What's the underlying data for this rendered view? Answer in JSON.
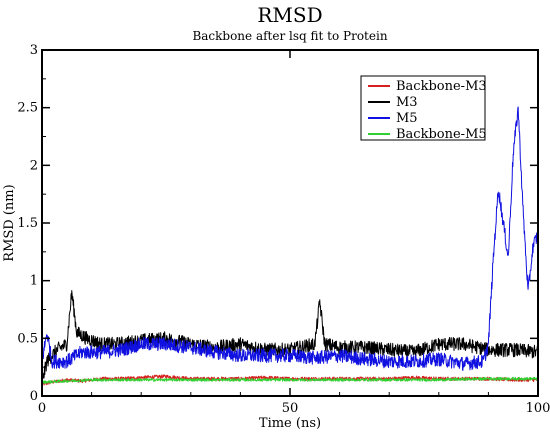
{
  "chart_data": {
    "type": "line",
    "title": "RMSD",
    "subtitle": "Backbone after lsq fit to Protein",
    "xlabel": "Time (ns)",
    "ylabel": "RMSD (nm)",
    "xlim": [
      0,
      100
    ],
    "ylim": [
      0,
      3
    ],
    "x_ticks": [
      0,
      50,
      100
    ],
    "y_ticks": [
      0,
      0.5,
      1,
      1.5,
      2,
      2.5,
      3
    ],
    "x_tick_labels": [
      "0",
      "50",
      "100"
    ],
    "y_tick_labels": [
      "0",
      "0.5",
      "1",
      "1.5",
      "2",
      "2.5",
      "3"
    ],
    "grid": false,
    "legend_position": "top-right",
    "series": [
      {
        "name": "Backbone-M3",
        "color": "#d62020",
        "points": [
          [
            0,
            0.1
          ],
          [
            2,
            0.12
          ],
          [
            5,
            0.14
          ],
          [
            8,
            0.13
          ],
          [
            12,
            0.15
          ],
          [
            16,
            0.15
          ],
          [
            20,
            0.16
          ],
          [
            25,
            0.17
          ],
          [
            30,
            0.15
          ],
          [
            35,
            0.15
          ],
          [
            40,
            0.15
          ],
          [
            45,
            0.16
          ],
          [
            50,
            0.15
          ],
          [
            55,
            0.15
          ],
          [
            60,
            0.15
          ],
          [
            65,
            0.15
          ],
          [
            70,
            0.15
          ],
          [
            75,
            0.16
          ],
          [
            80,
            0.15
          ],
          [
            85,
            0.15
          ],
          [
            90,
            0.15
          ],
          [
            95,
            0.14
          ],
          [
            100,
            0.14
          ]
        ],
        "noise": 0.015
      },
      {
        "name": "M3",
        "color": "#000000",
        "points": [
          [
            0,
            0.12
          ],
          [
            1,
            0.3
          ],
          [
            3,
            0.4
          ],
          [
            5,
            0.45
          ],
          [
            6,
            0.9
          ],
          [
            7,
            0.55
          ],
          [
            9,
            0.5
          ],
          [
            12,
            0.45
          ],
          [
            15,
            0.45
          ],
          [
            20,
            0.48
          ],
          [
            25,
            0.5
          ],
          [
            30,
            0.45
          ],
          [
            35,
            0.42
          ],
          [
            40,
            0.45
          ],
          [
            45,
            0.4
          ],
          [
            50,
            0.4
          ],
          [
            55,
            0.45
          ],
          [
            56,
            0.82
          ],
          [
            57,
            0.45
          ],
          [
            60,
            0.42
          ],
          [
            65,
            0.42
          ],
          [
            70,
            0.4
          ],
          [
            75,
            0.38
          ],
          [
            80,
            0.45
          ],
          [
            85,
            0.45
          ],
          [
            90,
            0.4
          ],
          [
            95,
            0.4
          ],
          [
            100,
            0.38
          ]
        ],
        "noise": 0.06
      },
      {
        "name": "M5",
        "color": "#1010e0",
        "points": [
          [
            0,
            0.3
          ],
          [
            1,
            0.55
          ],
          [
            2,
            0.3
          ],
          [
            5,
            0.3
          ],
          [
            8,
            0.38
          ],
          [
            12,
            0.38
          ],
          [
            16,
            0.4
          ],
          [
            20,
            0.45
          ],
          [
            25,
            0.45
          ],
          [
            30,
            0.42
          ],
          [
            35,
            0.38
          ],
          [
            40,
            0.35
          ],
          [
            45,
            0.35
          ],
          [
            50,
            0.35
          ],
          [
            55,
            0.33
          ],
          [
            60,
            0.35
          ],
          [
            65,
            0.32
          ],
          [
            70,
            0.3
          ],
          [
            75,
            0.3
          ],
          [
            80,
            0.32
          ],
          [
            85,
            0.28
          ],
          [
            89,
            0.3
          ],
          [
            90,
            0.45
          ],
          [
            91,
            1.2
          ],
          [
            92,
            1.8
          ],
          [
            93,
            1.5
          ],
          [
            94,
            1.2
          ],
          [
            95,
            2.1
          ],
          [
            96,
            2.5
          ],
          [
            97,
            1.6
          ],
          [
            98,
            0.9
          ],
          [
            99,
            1.3
          ],
          [
            100,
            1.4
          ]
        ],
        "noise": 0.06
      },
      {
        "name": "Backbone-M5",
        "color": "#30d030",
        "points": [
          [
            0,
            0.12
          ],
          [
            5,
            0.13
          ],
          [
            10,
            0.14
          ],
          [
            20,
            0.14
          ],
          [
            30,
            0.14
          ],
          [
            40,
            0.14
          ],
          [
            50,
            0.14
          ],
          [
            60,
            0.14
          ],
          [
            70,
            0.14
          ],
          [
            80,
            0.14
          ],
          [
            90,
            0.15
          ],
          [
            100,
            0.15
          ]
        ],
        "noise": 0.012
      }
    ]
  }
}
